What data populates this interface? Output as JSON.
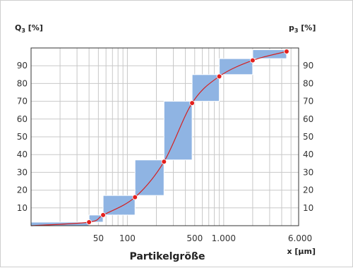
{
  "chart_data": {
    "type": "bar",
    "title": "",
    "xlabel": "Partikelgröße",
    "x_unit_label": "x [µm]",
    "ylabel_left": "Q",
    "ylabel_left_sub": "3",
    "ylabel_left_unit": " [%]",
    "ylabel_right": "p",
    "ylabel_right_sub": "3",
    "ylabel_right_unit": " [%]",
    "xscale": "log",
    "xlim": [
      10,
      6000
    ],
    "ylim": [
      0,
      100
    ],
    "grid": true,
    "x_ticks": [
      50,
      100,
      500,
      1000,
      6000
    ],
    "x_tick_labels": [
      "50",
      "100",
      "500",
      "1.000",
      "6.000"
    ],
    "y_ticks": [
      10,
      20,
      30,
      40,
      50,
      60,
      70,
      80,
      90
    ],
    "y_tick_labels": [
      "10",
      "20",
      "30",
      "40",
      "50",
      "60",
      "70",
      "80",
      "90"
    ],
    "bar_color": "#8fb4e3",
    "bar_edge_color": "#ffffff",
    "curve_color": "#d42020",
    "point_color": "#e4201d",
    "bars": [
      {
        "x0": 10,
        "x1": 40,
        "y0": 0,
        "y1": 2
      },
      {
        "x0": 40,
        "x1": 56,
        "y0": 2,
        "y1": 6
      },
      {
        "x0": 56,
        "x1": 120,
        "y0": 6,
        "y1": 17
      },
      {
        "x0": 120,
        "x1": 240,
        "y0": 17,
        "y1": 37
      },
      {
        "x0": 240,
        "x1": 470,
        "y0": 37,
        "y1": 70
      },
      {
        "x0": 470,
        "x1": 900,
        "y0": 70,
        "y1": 85
      },
      {
        "x0": 900,
        "x1": 2000,
        "y0": 85,
        "y1": 94
      },
      {
        "x0": 2000,
        "x1": 4500,
        "y0": 94,
        "y1": 99
      }
    ],
    "cumulative": {
      "x": [
        40,
        56,
        120,
        240,
        470,
        900,
        2000,
        4500
      ],
      "y": [
        2,
        6,
        16,
        36,
        69,
        84,
        93,
        98
      ]
    }
  }
}
